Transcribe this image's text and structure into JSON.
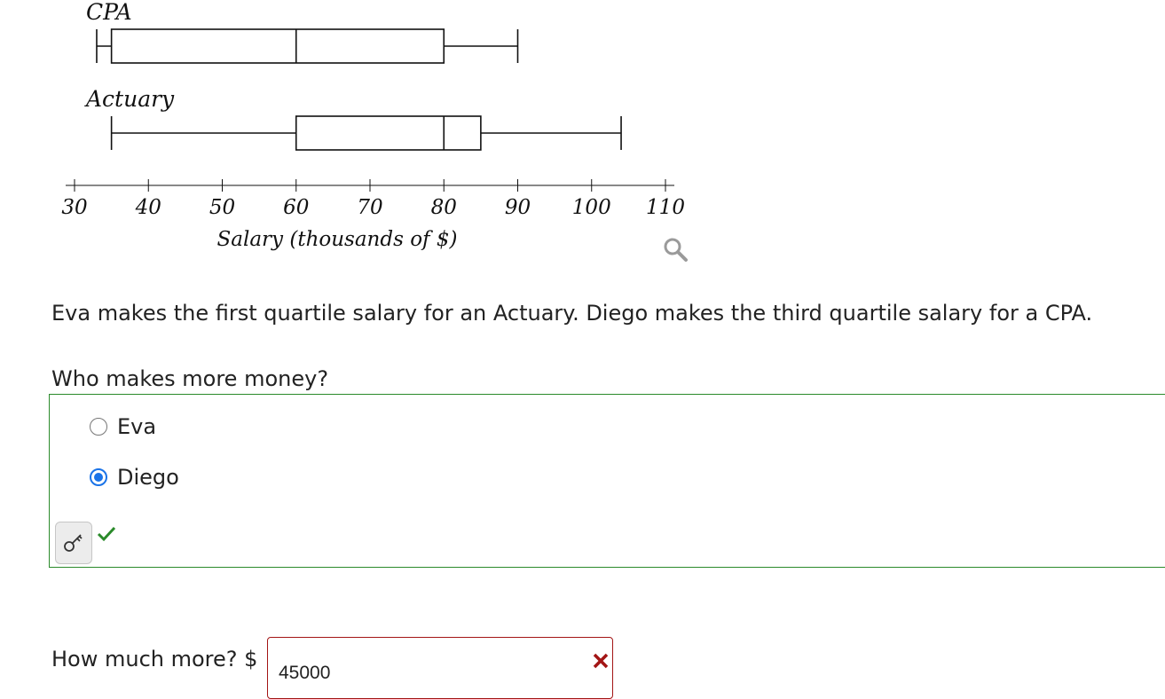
{
  "chart_data": {
    "type": "boxplot",
    "xlabel": "Salary (thousands of $)",
    "xlim": [
      30,
      110
    ],
    "ticks": [
      30,
      40,
      50,
      60,
      70,
      80,
      90,
      100,
      110
    ],
    "series": [
      {
        "name": "CPA",
        "min": 33,
        "q1": 35,
        "median": 60,
        "q3": 80,
        "max": 90
      },
      {
        "name": "Actuary",
        "min": 35,
        "q1": 60,
        "median": 80,
        "q3": 85,
        "max": 104
      }
    ]
  },
  "question": {
    "text": "Eva makes the first quartile salary for an Actuary. Diego makes the third quartile salary for a CPA."
  },
  "part1": {
    "prompt": "Who makes more money?",
    "options": [
      "Eva",
      "Diego"
    ],
    "selected": "Diego",
    "status": "correct"
  },
  "part2": {
    "prompt": "How much more? $",
    "value": "45000",
    "status": "incorrect"
  },
  "icons": {
    "zoom": "magnifier-icon",
    "key": "key-icon",
    "correct": "checkmark-icon",
    "incorrect": "x-icon"
  },
  "colors": {
    "correct": "#2a8a2a",
    "incorrect": "#a31515",
    "radio_selected": "#1a73e8"
  }
}
